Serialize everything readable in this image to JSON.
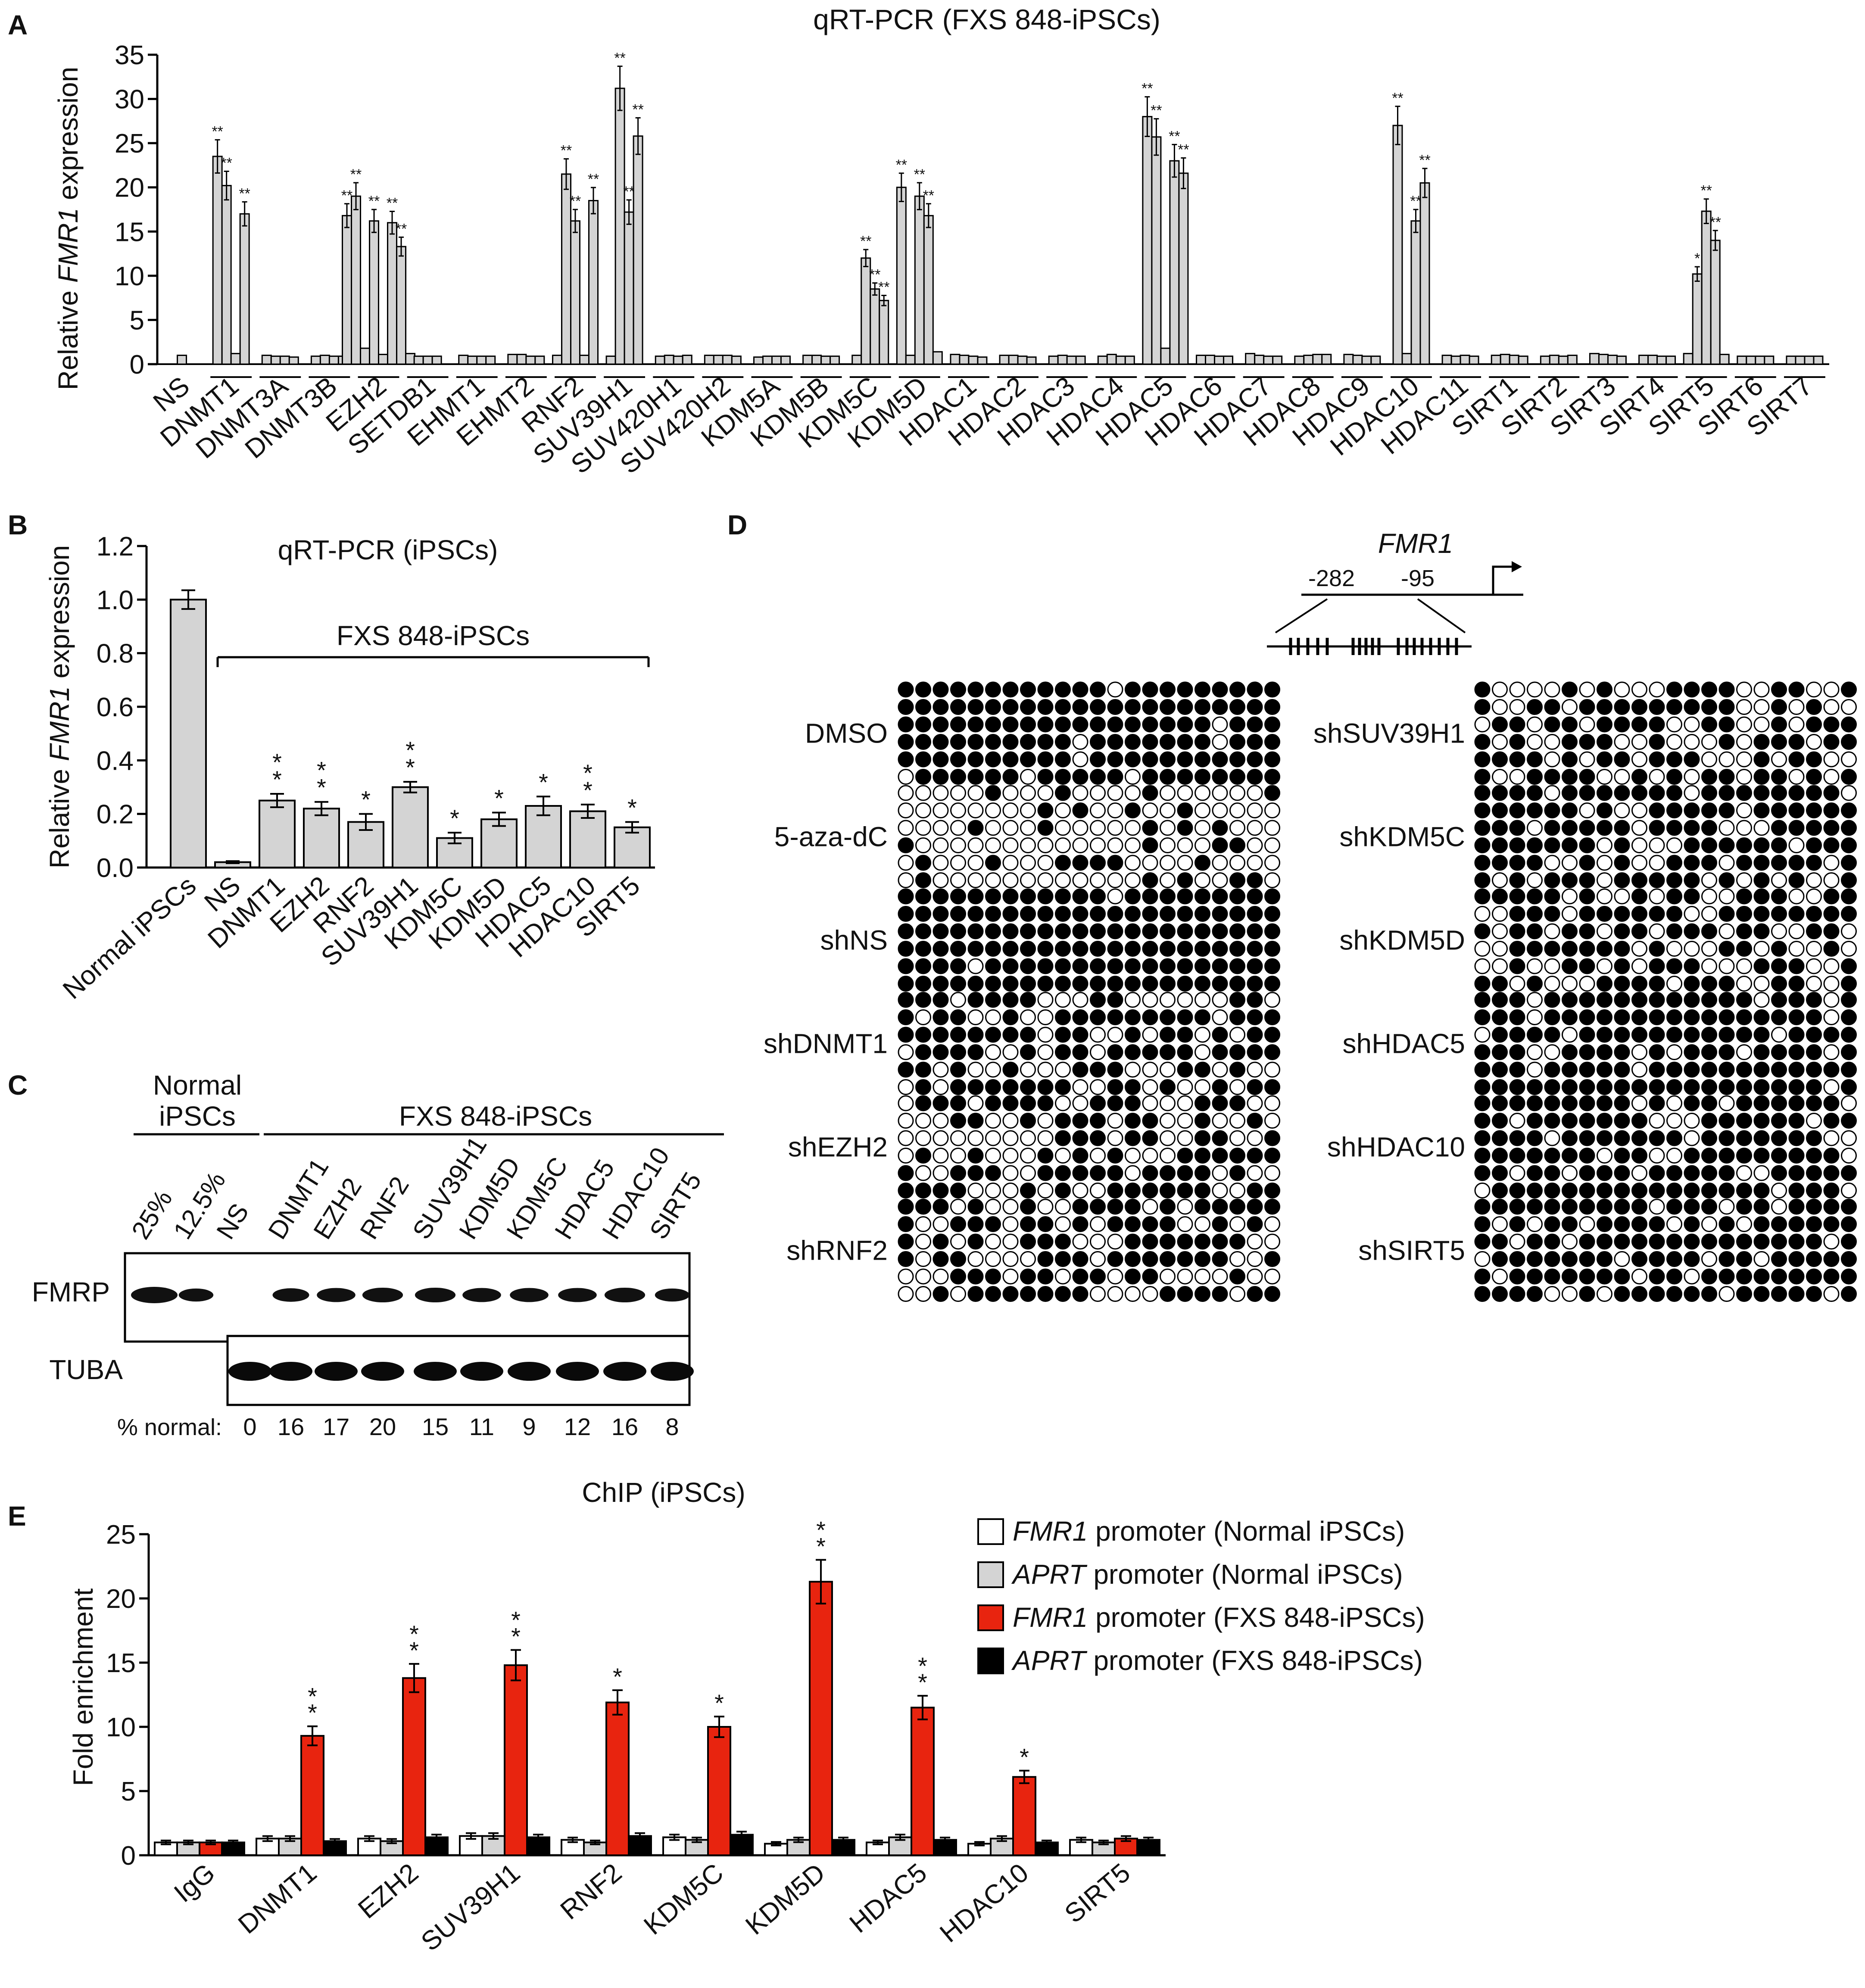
{
  "colors": {
    "bar_gray": "#d4d4d4",
    "red": "#e8240f",
    "black": "#000000",
    "white": "#ffffff"
  },
  "panels": {
    "A": {
      "letter": "A"
    },
    "B": {
      "letter": "B",
      "group_label": "FXS 848-iPSCs"
    },
    "C": {
      "letter": "C",
      "normal_label_1": "Normal",
      "normal_label_2": "iPSCs",
      "fxs_label": "FXS 848-iPSCs",
      "lanes": [
        "25%",
        "12.5%",
        "NS",
        "DNMT1",
        "EZH2",
        "RNF2",
        "SUV39H1",
        "KDM5D",
        "KDM5C",
        "HDAC5",
        "HDAC10",
        "SIRT5"
      ],
      "band_labels": [
        "FMRP",
        "TUBA"
      ],
      "pct_label": "% normal:",
      "pct_values": [
        "0",
        "16",
        "17",
        "20",
        "15",
        "11",
        "9",
        "12",
        "16",
        "8"
      ]
    },
    "D": {
      "letter": "D",
      "gene": "FMR1",
      "pos1": "-282",
      "pos2": "-95",
      "left_samples": [
        "DMSO",
        "5-aza-dC",
        "shNS",
        "shDNMT1",
        "shEZH2",
        "shRNF2"
      ],
      "right_samples": [
        "shSUV39H1",
        "shKDM5C",
        "shKDM5D",
        "shHDAC5",
        "shHDAC10",
        "shSIRT5"
      ],
      "methylation_fraction": {
        "DMSO": 0.92,
        "5-aza-dC": 0.22,
        "shNS": 0.97,
        "shDNMT1": 0.55,
        "shEZH2": 0.62,
        "shRNF2": 0.58,
        "shSUV39H1": 0.55,
        "shKDM5C": 0.72,
        "shKDM5D": 0.64,
        "shHDAC5": 0.78,
        "shHDAC10": 0.82,
        "shSIRT5": 0.72
      }
    },
    "E": {
      "letter": "E",
      "legend": [
        {
          "gene": "FMR1",
          "text": " promoter (Normal iPSCs)"
        },
        {
          "gene": "APRT",
          "text": " promoter (Normal iPSCs)"
        },
        {
          "gene": "FMR1",
          "text": " promoter (FXS 848-iPSCs)"
        },
        {
          "gene": "APRT",
          "text": " promoter (FXS 848-iPSCs)"
        }
      ]
    }
  },
  "chart_data": [
    {
      "type": "bar",
      "panel": "A",
      "title": "qRT-PCR (FXS 848-iPSCs)",
      "ylabel_parts": [
        "Relative ",
        "FMR1",
        " expression"
      ],
      "ylim": [
        0,
        35
      ],
      "yticks": [
        0,
        5,
        10,
        15,
        20,
        25,
        30,
        35
      ],
      "categories": [
        "NS",
        "DNMT1",
        "DNMT3A",
        "DNMT3B",
        "EZH2",
        "SETDB1",
        "EHMT1",
        "EHMT2",
        "RNF2",
        "SUV39H1",
        "SUV420H1",
        "SUV420H2",
        "KDM5A",
        "KDM5B",
        "KDM5C",
        "KDM5D",
        "HDAC1",
        "HDAC2",
        "HDAC3",
        "HDAC4",
        "HDAC5",
        "HDAC6",
        "HDAC7",
        "HDAC8",
        "HDAC9",
        "HDAC10",
        "HDAC11",
        "SIRT1",
        "SIRT2",
        "SIRT3",
        "SIRT4",
        "SIRT5",
        "SIRT6",
        "SIRT7"
      ],
      "groups": [
        [
          1.0
        ],
        [
          23.5,
          20.2,
          1.2,
          17.0
        ],
        [
          1.0,
          0.9,
          0.9,
          0.8
        ],
        [
          0.9,
          1.0,
          0.9,
          0.9
        ],
        [
          16.8,
          19.0,
          1.8,
          16.2,
          1.1,
          16.0,
          13.3,
          1.2
        ],
        [
          0.9,
          0.9,
          0.9
        ],
        [
          1.0,
          0.9,
          0.9,
          0.9
        ],
        [
          1.1,
          1.1,
          0.9,
          0.9
        ],
        [
          1.0,
          21.5,
          16.2,
          1.0,
          18.5
        ],
        [
          0.9,
          31.2,
          17.2,
          25.8
        ],
        [
          0.9,
          1.0,
          0.9,
          1.0
        ],
        [
          1.0,
          1.0,
          1.0,
          0.9
        ],
        [
          0.8,
          0.9,
          0.9,
          0.9
        ],
        [
          1.0,
          1.0,
          0.9,
          0.9
        ],
        [
          1.0,
          12.0,
          8.5,
          7.2
        ],
        [
          20.0,
          1.0,
          19.0,
          16.8,
          1.4
        ],
        [
          1.1,
          1.0,
          0.9,
          0.8
        ],
        [
          1.0,
          1.0,
          0.9,
          0.8
        ],
        [
          0.9,
          1.0,
          0.9,
          0.9
        ],
        [
          0.9,
          1.1,
          0.9,
          0.9
        ],
        [
          28.0,
          25.7,
          1.8,
          23.0,
          21.6
        ],
        [
          1.0,
          1.0,
          0.9,
          0.9
        ],
        [
          1.2,
          1.0,
          0.9,
          0.9
        ],
        [
          0.9,
          1.0,
          1.1,
          1.1
        ],
        [
          1.1,
          1.0,
          0.9,
          0.9
        ],
        [
          27.0,
          1.2,
          16.2,
          20.5
        ],
        [
          1.0,
          0.9,
          1.0,
          0.9
        ],
        [
          1.0,
          1.1,
          1.0,
          0.9
        ],
        [
          0.9,
          1.0,
          0.9,
          1.0
        ],
        [
          1.2,
          1.1,
          1.0,
          0.9
        ],
        [
          1.0,
          1.0,
          0.9,
          0.9
        ],
        [
          1.2,
          10.2,
          17.3,
          14.0,
          1.1
        ],
        [
          0.9,
          0.9,
          0.9,
          0.9
        ],
        [
          0.9,
          0.9,
          0.9,
          0.9
        ]
      ],
      "significance": {
        "1": [
          "**",
          "**",
          "",
          "**"
        ],
        "4": [
          "**",
          "**",
          "",
          "**",
          "",
          "**",
          "**",
          ""
        ],
        "8": [
          "",
          "**",
          "**",
          "",
          "**"
        ],
        "9": [
          "",
          "**",
          "**",
          "**"
        ],
        "14": [
          "",
          "**",
          "**",
          "**"
        ],
        "15": [
          "**",
          "",
          "**",
          "**",
          ""
        ],
        "20": [
          "**",
          "**",
          "",
          "**",
          "**"
        ],
        "25": [
          "**",
          "",
          "**",
          "**"
        ],
        "31": [
          "",
          "*",
          "**",
          "**",
          ""
        ]
      }
    },
    {
      "type": "bar",
      "panel": "B",
      "title": "qRT-PCR (iPSCs)",
      "ylabel_parts": [
        "Relative ",
        "FMR1",
        " expression"
      ],
      "ylim": [
        0,
        1.2
      ],
      "yticks": [
        "0.0",
        "0.2",
        "0.4",
        "0.6",
        "0.8",
        "1.0",
        "1.2"
      ],
      "categories": [
        "Normal iPSCs",
        "NS",
        "DNMT1",
        "EZH2",
        "RNF2",
        "SUV39H1",
        "KDM5C",
        "KDM5D",
        "HDAC5",
        "HDAC10",
        "SIRT5"
      ],
      "values": [
        1.0,
        0.02,
        0.25,
        0.22,
        0.17,
        0.3,
        0.11,
        0.18,
        0.23,
        0.21,
        0.15
      ],
      "errors": [
        0.035,
        0.004,
        0.025,
        0.025,
        0.03,
        0.02,
        0.02,
        0.025,
        0.035,
        0.025,
        0.02
      ],
      "significance": [
        "",
        "",
        "**",
        "**",
        "*",
        "**",
        "*",
        "*",
        "*",
        "**",
        "*"
      ]
    },
    {
      "type": "bar",
      "panel": "E",
      "title": "ChIP (iPSCs)",
      "ylabel": "Fold enrichment",
      "ylim": [
        0,
        25
      ],
      "yticks": [
        0,
        5,
        10,
        15,
        20,
        25
      ],
      "categories": [
        "IgG",
        "DNMT1",
        "EZH2",
        "SUV39H1",
        "RNF2",
        "KDM5C",
        "KDM5D",
        "HDAC5",
        "HDAC10",
        "SIRT5"
      ],
      "series": [
        {
          "name": "FMR1 promoter (Normal iPSCs)",
          "values": [
            1.0,
            1.3,
            1.3,
            1.5,
            1.2,
            1.4,
            0.9,
            1.0,
            0.9,
            1.2
          ]
        },
        {
          "name": "APRT promoter (Normal iPSCs)",
          "values": [
            1.0,
            1.3,
            1.1,
            1.5,
            1.0,
            1.2,
            1.2,
            1.4,
            1.3,
            1.0
          ]
        },
        {
          "name": "FMR1 promoter (FXS 848-iPSCs)",
          "values": [
            1.0,
            9.3,
            13.8,
            14.8,
            11.9,
            10.0,
            21.3,
            11.5,
            6.1,
            1.3
          ]
        },
        {
          "name": "APRT promoter (FXS 848-iPSCs)",
          "values": [
            1.0,
            1.1,
            1.4,
            1.4,
            1.5,
            1.6,
            1.2,
            1.2,
            1.0,
            1.2
          ]
        }
      ],
      "significance": [
        "",
        "**",
        "**",
        "**",
        "*",
        "*",
        "**",
        "**",
        "*",
        ""
      ]
    }
  ]
}
